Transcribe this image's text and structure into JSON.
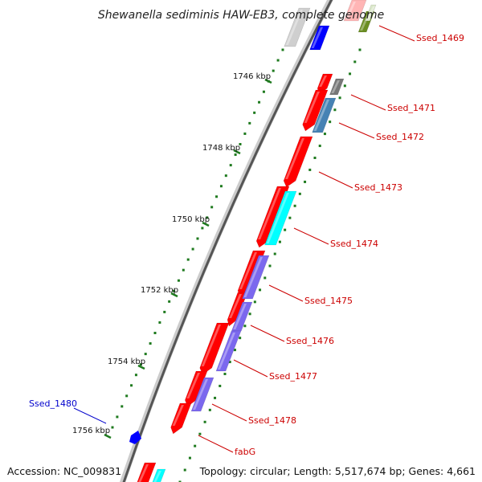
{
  "title": "Shewanella sediminis HAW-EB3, complete genome",
  "accession": "Accession: NC_009831",
  "summary": "Topology: circular; Length: 5,517,674 bp; Genes: 4,661",
  "colors": {
    "backbone_dark": "#555555",
    "backbone_light": "#cccccc",
    "cds": "#ff0000",
    "tick": "#1e7a1e",
    "label_forward": "#cc0000",
    "label_reverse": "#0000cc",
    "cyan": "#00ffff",
    "slate": "#7b68ee",
    "steel": "#4682b4",
    "blue": "#0000ff",
    "gray": "#777777",
    "light_gray": "#cfcfcf",
    "olive": "#6b8e23"
  },
  "scale_ticks": [
    {
      "label": "1746 kbp"
    },
    {
      "label": "1748 kbp"
    },
    {
      "label": "1750 kbp"
    },
    {
      "label": "1752 kbp"
    },
    {
      "label": "1754 kbp"
    },
    {
      "label": "1756 kbp"
    }
  ],
  "gene_labels": [
    {
      "name": "Ssed_1469",
      "strand": "forward"
    },
    {
      "name": "Ssed_1471",
      "strand": "forward"
    },
    {
      "name": "Ssed_1472",
      "strand": "forward"
    },
    {
      "name": "Ssed_1473",
      "strand": "forward"
    },
    {
      "name": "Ssed_1474",
      "strand": "forward"
    },
    {
      "name": "Ssed_1475",
      "strand": "forward"
    },
    {
      "name": "Ssed_1476",
      "strand": "forward"
    },
    {
      "name": "Ssed_1477",
      "strand": "forward"
    },
    {
      "name": "Ssed_1478",
      "strand": "forward"
    },
    {
      "name": "fabG",
      "strand": "forward"
    },
    {
      "name": "Ssed_1480",
      "strand": "reverse"
    }
  ]
}
